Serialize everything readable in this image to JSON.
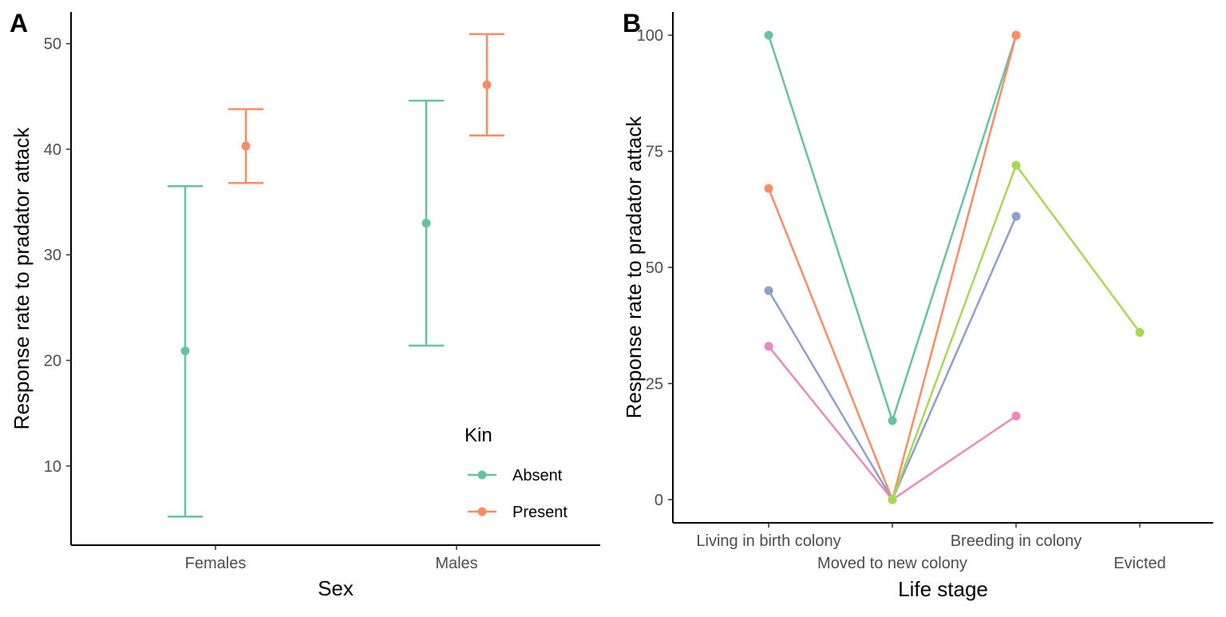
{
  "chart_data": [
    {
      "panel": "A",
      "type": "scatter",
      "style": "point-errorbar",
      "xlabel": "Sex",
      "ylabel": "Response rate to pradator attack",
      "categories": [
        "Females",
        "Males"
      ],
      "ylim": [
        2.5,
        53
      ],
      "yticks": [
        10,
        20,
        30,
        40,
        50
      ],
      "grid": false,
      "legend": {
        "title": "Kin",
        "position": "bottom-right"
      },
      "series": [
        {
          "name": "Absent",
          "color": "#66C2A5",
          "values": [
            20.9,
            33.0
          ],
          "lower": [
            5.2,
            21.4
          ],
          "upper": [
            36.5,
            44.6
          ]
        },
        {
          "name": "Present",
          "color": "#FC8D62",
          "values": [
            40.3,
            46.1
          ],
          "lower": [
            36.8,
            41.3
          ],
          "upper": [
            43.8,
            50.9
          ]
        }
      ]
    },
    {
      "panel": "B",
      "type": "line",
      "xlabel": "Life stage",
      "ylabel": "Response rate to pradator attack",
      "categories": [
        "Living in birth colony",
        "Moved to new colony",
        "Breeding in colony",
        "Evicted"
      ],
      "ylim": [
        -5,
        105
      ],
      "yticks": [
        0,
        25,
        50,
        75,
        100
      ],
      "grid": false,
      "legend": null,
      "series": [
        {
          "color": "#66C2A5",
          "values": [
            100,
            17,
            100,
            null
          ]
        },
        {
          "color": "#FC8D62",
          "values": [
            67,
            0,
            100,
            null
          ]
        },
        {
          "color": "#8DA0CB",
          "values": [
            45,
            0,
            61,
            null
          ]
        },
        {
          "color": "#E78AC3",
          "values": [
            33,
            0,
            18,
            null
          ]
        },
        {
          "color": "#A6D854",
          "values": [
            null,
            0,
            72,
            36
          ]
        }
      ]
    }
  ]
}
